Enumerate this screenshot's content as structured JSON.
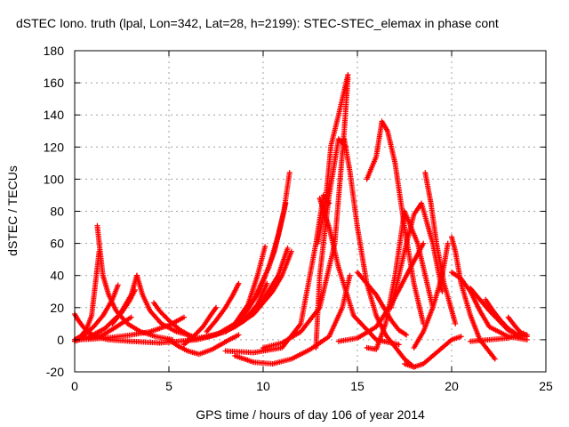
{
  "chart_data": {
    "type": "scatter",
    "title": "dSTEC Iono. truth (lpal, Lon=342, Lat=28, h=2199): STEC-STEC_elemax in phase cont",
    "xlabel": "GPS time / hours of day 106 of year 2014",
    "ylabel": "dSTEC  / TECUs",
    "xlim": [
      0,
      25
    ],
    "ylim": [
      -20,
      180
    ],
    "xticks": [
      0,
      5,
      10,
      15,
      20,
      25
    ],
    "yticks": [
      -20,
      0,
      20,
      40,
      60,
      80,
      100,
      120,
      140,
      160,
      180
    ],
    "grid": true,
    "marker": "+",
    "color": "#ff0000",
    "series": [
      {
        "x": [
          0.0,
          0.3,
          0.6,
          0.9,
          1.1,
          1.3
        ],
        "y": [
          0,
          2,
          6,
          15,
          35,
          55
        ]
      },
      {
        "x": [
          1.2,
          1.35,
          1.5,
          1.8,
          2.2,
          2.8,
          3.5,
          4.3,
          5.2
        ],
        "y": [
          71,
          55,
          40,
          28,
          18,
          10,
          5,
          2,
          0
        ]
      },
      {
        "x": [
          0.0,
          0.2,
          0.45,
          0.7,
          1.1,
          1.8,
          3.0,
          4.5
        ],
        "y": [
          16,
          12,
          8,
          5,
          2,
          0,
          -1,
          -2
        ]
      },
      {
        "x": [
          0.0,
          0.5,
          1.0,
          1.5,
          2.0,
          2.3
        ],
        "y": [
          0,
          3,
          8,
          15,
          25,
          34
        ]
      },
      {
        "x": [
          0.0,
          1.0,
          2.0,
          3.0,
          4.0,
          5.0,
          5.8
        ],
        "y": [
          0,
          0.5,
          1.5,
          3,
          5,
          9,
          14
        ]
      },
      {
        "x": [
          0.0,
          0.8,
          1.6,
          2.4,
          3.0,
          3.3
        ],
        "y": [
          -1,
          2,
          7,
          16,
          28,
          40
        ]
      },
      {
        "x": [
          3.3,
          3.6,
          4.0,
          4.6,
          5.4,
          6.3
        ],
        "y": [
          40,
          28,
          18,
          10,
          5,
          2
        ]
      },
      {
        "x": [
          2.0,
          2.5,
          2.9,
          3.2
        ],
        "y": [
          10,
          17,
          24,
          31
        ]
      },
      {
        "x": [
          0.8,
          1.5,
          2.2,
          3.0
        ],
        "y": [
          1,
          3,
          8,
          14
        ]
      },
      {
        "x": [
          4.2,
          4.5,
          5.0,
          5.6,
          6.2
        ],
        "y": [
          23,
          18,
          12,
          6,
          2
        ]
      },
      {
        "x": [
          5.0,
          5.5,
          6.0,
          6.6,
          7.3,
          8.2,
          8.7
        ],
        "y": [
          0,
          -4,
          -7,
          -9,
          -6,
          0,
          3
        ]
      },
      {
        "x": [
          5.8,
          6.3,
          6.8,
          7.2,
          7.5
        ],
        "y": [
          -3,
          2,
          8,
          15,
          20
        ]
      },
      {
        "x": [
          7.0,
          7.5,
          8.0,
          8.4,
          8.7
        ],
        "y": [
          5,
          12,
          20,
          28,
          35
        ]
      },
      {
        "x": [
          4.5,
          5.5,
          6.5,
          7.5,
          8.5,
          9.2,
          9.7,
          10.1
        ],
        "y": [
          -2,
          -1,
          0,
          3,
          10,
          22,
          40,
          58
        ]
      },
      {
        "x": [
          6.0,
          7.0,
          8.0,
          9.0,
          9.7,
          10.2
        ],
        "y": [
          0,
          2,
          5,
          12,
          22,
          35
        ]
      },
      {
        "x": [
          7.5,
          8.5,
          9.5,
          10.5,
          11.0,
          11.5
        ],
        "y": [
          3,
          8,
          16,
          30,
          40,
          55
        ]
      },
      {
        "x": [
          7.0,
          8.0,
          9.0,
          10.0,
          10.8,
          11.3
        ],
        "y": [
          2,
          5,
          12,
          25,
          40,
          57
        ]
      },
      {
        "x": [
          8.5,
          9.5,
          10.3,
          10.8,
          11.2
        ],
        "y": [
          10,
          25,
          45,
          65,
          85
        ]
      },
      {
        "x": [
          8.8,
          9.8,
          10.6,
          11.1,
          11.4
        ],
        "y": [
          12,
          30,
          55,
          80,
          104
        ]
      },
      {
        "x": [
          8.5,
          9.5,
          10.5,
          11.5,
          12.5,
          13.5,
          14.2,
          14.6
        ],
        "y": [
          -10,
          -14,
          -15,
          -12,
          -6,
          2,
          20,
          40
        ]
      },
      {
        "x": [
          8.0,
          9.5,
          11.0,
          12.0,
          12.8,
          13.2,
          13.5
        ],
        "y": [
          -7,
          -8,
          -5,
          10,
          60,
          90,
          85
        ]
      },
      {
        "x": [
          12.8,
          13.0,
          13.5,
          14.0,
          14.4
        ],
        "y": [
          -5,
          40,
          90,
          125,
          120
        ]
      },
      {
        "x": [
          12.9,
          13.3,
          13.6,
          14.0,
          14.3,
          14.5
        ],
        "y": [
          60,
          85,
          121,
          140,
          155,
          165
        ]
      },
      {
        "x": [
          10.0,
          11.0,
          12.0,
          13.0,
          13.8,
          14.3,
          14.5
        ],
        "y": [
          -5,
          -2,
          5,
          20,
          60,
          130,
          163
        ]
      },
      {
        "x": [
          13.0,
          13.5,
          14.0,
          14.8,
          16.0,
          17.2
        ],
        "y": [
          88,
          70,
          45,
          15,
          0,
          -3
        ]
      },
      {
        "x": [
          14.3,
          14.6,
          15.0,
          15.5,
          16.0,
          16.5,
          17.5,
          18.0
        ],
        "y": [
          125,
          105,
          70,
          35,
          15,
          3,
          -12,
          -17
        ]
      },
      {
        "x": [
          14.0,
          15.0,
          16.0,
          16.8,
          17.6,
          18.5
        ],
        "y": [
          -1,
          1,
          8,
          22,
          40,
          60
        ]
      },
      {
        "x": [
          15.5,
          16.0,
          16.3,
          16.6,
          17.0,
          17.5,
          18.0,
          18.5
        ],
        "y": [
          100,
          114,
          136,
          130,
          110,
          70,
          35,
          10
        ]
      },
      {
        "x": [
          15.5,
          16.0,
          16.5,
          17.0,
          17.5,
          18.2,
          19.0
        ],
        "y": [
          -5,
          -6,
          10,
          40,
          80,
          60,
          20
        ]
      },
      {
        "x": [
          15.0,
          15.5,
          16.0,
          16.4,
          16.8,
          17.2,
          17.6
        ],
        "y": [
          42,
          35,
          28,
          20,
          12,
          6,
          3
        ]
      },
      {
        "x": [
          16.8,
          17.2,
          17.6,
          18.0,
          18.4,
          19.0,
          19.5
        ],
        "y": [
          20,
          40,
          60,
          78,
          85,
          60,
          30
        ]
      },
      {
        "x": [
          17.5,
          18.0,
          18.5,
          19.0,
          19.5,
          20.0,
          20.5
        ],
        "y": [
          -15,
          -17,
          -15,
          -10,
          -5,
          0,
          2
        ]
      },
      {
        "x": [
          18.6,
          18.9,
          19.2,
          19.6,
          20.2
        ],
        "y": [
          104,
          85,
          60,
          35,
          10
        ]
      },
      {
        "x": [
          18.0,
          18.5,
          19.0,
          19.5,
          19.8
        ],
        "y": [
          -5,
          5,
          20,
          40,
          60
        ]
      },
      {
        "x": [
          20.0,
          20.2,
          20.5,
          21.0,
          21.5,
          22.3
        ],
        "y": [
          64,
          55,
          35,
          15,
          0,
          -12
        ]
      },
      {
        "x": [
          20.0,
          20.5,
          21.0,
          21.5,
          22.0,
          23.0,
          24.0
        ],
        "y": [
          42,
          38,
          30,
          18,
          8,
          2,
          0
        ]
      },
      {
        "x": [
          21.0,
          21.5,
          22.0,
          22.5,
          23.0,
          23.5
        ],
        "y": [
          32,
          25,
          18,
          12,
          6,
          3
        ]
      },
      {
        "x": [
          21.8,
          22.2,
          22.6,
          23.0,
          23.5,
          24.0
        ],
        "y": [
          25,
          18,
          12,
          7,
          3,
          2
        ]
      },
      {
        "x": [
          23.0,
          23.4,
          23.7,
          24.0
        ],
        "y": [
          14,
          8,
          4,
          3
        ]
      },
      {
        "x": [
          21.0,
          22.0,
          23.0,
          23.8
        ],
        "y": [
          -1,
          0,
          1,
          4
        ]
      }
    ]
  }
}
